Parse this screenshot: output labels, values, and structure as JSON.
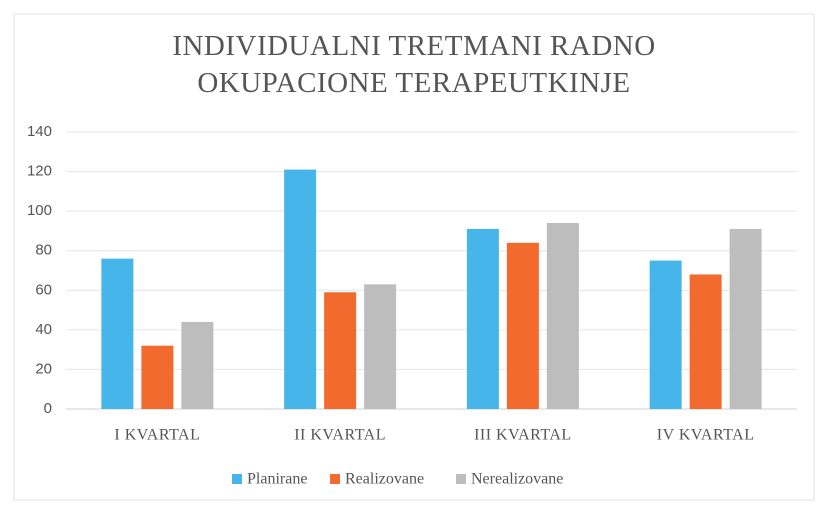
{
  "chart_data": {
    "type": "bar",
    "title": "INDIVIDUALNI TRETMANI RADNO OKUPACIONE TERAPEUTKINJE",
    "categories": [
      "I KVARTAL",
      "II KVARTAL",
      "III KVARTAL",
      "IV KVARTAL"
    ],
    "series": [
      {
        "name": "Planirane",
        "color": "#45b5ea",
        "values": [
          76,
          121,
          91,
          75
        ]
      },
      {
        "name": "Realizovane",
        "color": "#f26a2e",
        "values": [
          32,
          59,
          84,
          68
        ]
      },
      {
        "name": "Nerealizovane",
        "color": "#bdbdbd",
        "values": [
          44,
          63,
          94,
          91
        ]
      }
    ],
    "ylim": [
      0,
      140
    ],
    "yticks": [
      0,
      20,
      40,
      60,
      80,
      100,
      120,
      140
    ],
    "grid": true,
    "legend": "bottom"
  }
}
